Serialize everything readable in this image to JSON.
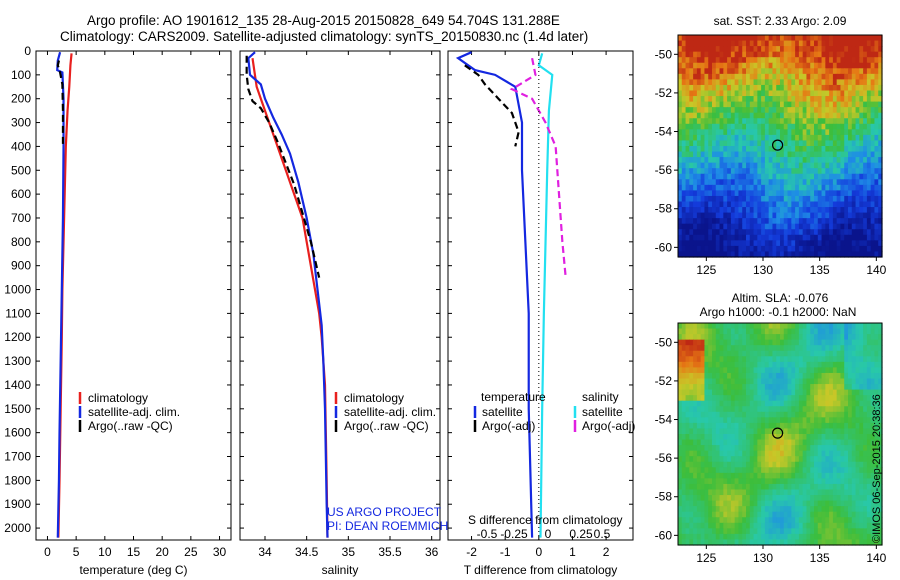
{
  "header": {
    "line1": "Argo profile: AO 1901612_135 28-Aug-2015 20150828_649 54.704S 131.288E",
    "line2": "Climatology: CARS2009. Satellite-adjusted climatology: synTS_20150830.nc (1.4d later)"
  },
  "colors": {
    "climatology": "#e8201e",
    "satellite": "#1428e0",
    "argo": "#000000",
    "sat_salinity": "#22e0f0",
    "argo_salinity": "#e020e0"
  },
  "chart_data": [
    {
      "type": "line",
      "panel": "temperature",
      "xlabel": "temperature (deg C)",
      "ylabel": "",
      "xlim": [
        -2,
        32
      ],
      "ylim": [
        2050,
        0
      ],
      "x_ticks": [
        "0",
        "5",
        "10",
        "15",
        "20",
        "25",
        "30"
      ],
      "y_ticks": [
        "0",
        "100",
        "200",
        "300",
        "400",
        "500",
        "600",
        "700",
        "800",
        "900",
        "1000",
        "1100",
        "1200",
        "1300",
        "1400",
        "1500",
        "1600",
        "1700",
        "1800",
        "1900",
        "2000"
      ],
      "legend": [
        "climatology",
        "satellite-adj. clim.",
        "Argo(..raw -QC)"
      ],
      "series": [
        {
          "name": "climatology",
          "style": "solid",
          "points": [
            [
              4.2,
              10
            ],
            [
              4.0,
              60
            ],
            [
              3.8,
              150
            ],
            [
              3.5,
              250
            ],
            [
              3.2,
              400
            ],
            [
              3.0,
              600
            ],
            [
              2.8,
              800
            ],
            [
              2.6,
              1000
            ],
            [
              2.5,
              1200
            ],
            [
              2.3,
              1500
            ],
            [
              2.1,
              1800
            ],
            [
              1.9,
              2040
            ]
          ]
        },
        {
          "name": "satellite-adj. clim.",
          "style": "solid",
          "points": [
            [
              2.2,
              5
            ],
            [
              1.8,
              40
            ],
            [
              1.7,
              80
            ],
            [
              2.6,
              90
            ],
            [
              2.8,
              200
            ],
            [
              2.8,
              400
            ],
            [
              2.7,
              700
            ],
            [
              2.5,
              1000
            ],
            [
              2.3,
              1300
            ],
            [
              2.1,
              1600
            ],
            [
              2.0,
              1800
            ],
            [
              1.8,
              2040
            ]
          ]
        },
        {
          "name": "Argo(..raw -QC)",
          "style": "dashed",
          "points": [
            [
              2.0,
              40
            ],
            [
              1.8,
              60
            ],
            [
              2.2,
              90
            ],
            [
              2.6,
              140
            ],
            [
              2.7,
              250
            ],
            [
              2.7,
              400
            ]
          ]
        }
      ]
    },
    {
      "type": "line",
      "panel": "salinity",
      "xlabel": "salinity",
      "xlim": [
        33.7,
        36.1
      ],
      "ylim": [
        2050,
        0
      ],
      "x_ticks": [
        "34",
        "34.5",
        "35",
        "35.5",
        "36"
      ],
      "legend": [
        "climatology",
        "satellite-adj. clim.",
        "Argo(..raw -QC)"
      ],
      "series": [
        {
          "name": "climatology",
          "style": "solid",
          "points": [
            [
              33.85,
              30
            ],
            [
              33.9,
              150
            ],
            [
              33.95,
              200
            ],
            [
              34.05,
              300
            ],
            [
              34.15,
              400
            ],
            [
              34.25,
              500
            ],
            [
              34.35,
              600
            ],
            [
              34.45,
              700
            ],
            [
              34.5,
              800
            ],
            [
              34.55,
              900
            ],
            [
              34.6,
              1000
            ],
            [
              34.65,
              1100
            ],
            [
              34.68,
              1200
            ],
            [
              34.7,
              1300
            ],
            [
              34.72,
              1400
            ],
            [
              34.73,
              1600
            ],
            [
              34.74,
              1800
            ],
            [
              34.75,
              2040
            ]
          ]
        },
        {
          "name": "satellite-adj. clim.",
          "style": "solid",
          "points": [
            [
              33.88,
              5
            ],
            [
              33.8,
              30
            ],
            [
              33.82,
              100
            ],
            [
              33.95,
              140
            ],
            [
              34.0,
              200
            ],
            [
              34.1,
              280
            ],
            [
              34.2,
              350
            ],
            [
              34.3,
              430
            ],
            [
              34.4,
              550
            ],
            [
              34.5,
              700
            ],
            [
              34.58,
              850
            ],
            [
              34.63,
              1000
            ],
            [
              34.68,
              1150
            ],
            [
              34.7,
              1300
            ],
            [
              34.72,
              1500
            ],
            [
              34.73,
              1700
            ],
            [
              34.74,
              1900
            ],
            [
              34.75,
              2040
            ]
          ]
        },
        {
          "name": "Argo(..raw -QC)",
          "style": "dashed",
          "points": [
            [
              33.78,
              20
            ],
            [
              33.78,
              100
            ],
            [
              33.8,
              160
            ],
            [
              33.85,
              210
            ],
            [
              33.95,
              240
            ],
            [
              34.05,
              300
            ],
            [
              34.15,
              380
            ],
            [
              34.25,
              470
            ],
            [
              34.35,
              560
            ],
            [
              34.45,
              680
            ],
            [
              34.55,
              800
            ],
            [
              34.65,
              950
            ]
          ]
        }
      ],
      "annotation": [
        "US ARGO PROJECT",
        "PI: DEAN ROEMMICH"
      ]
    },
    {
      "type": "line",
      "panel": "difference",
      "xlabel": "T difference from climatology",
      "xlabel2": "S difference from climatology",
      "xlim": [
        -2.7,
        2.8
      ],
      "ylim": [
        2050,
        0
      ],
      "x_ticks": [
        "-2",
        "-1",
        "0",
        "1",
        "2"
      ],
      "x_ticks2": [
        "-0.5",
        "-0.25",
        "0",
        "0.25",
        "0.5"
      ],
      "legend_left_title": "temperature",
      "legend_right_title": "salinity",
      "legend": [
        "satellite",
        "Argo(-adj)",
        "satellite",
        "Argo(-adj)"
      ],
      "series": [
        {
          "name": "satellite",
          "group": "temperature",
          "style": "solid",
          "color": "satellite",
          "points": [
            [
              -2.0,
              5
            ],
            [
              -2.4,
              30
            ],
            [
              -2.1,
              60
            ],
            [
              -1.9,
              80
            ],
            [
              -1.3,
              100
            ],
            [
              -0.7,
              150
            ],
            [
              -0.5,
              300
            ],
            [
              -0.5,
              500
            ],
            [
              -0.4,
              800
            ],
            [
              -0.3,
              1100
            ],
            [
              -0.3,
              1500
            ],
            [
              -0.2,
              2040
            ]
          ]
        },
        {
          "name": "Argo(-adj)",
          "group": "temperature",
          "style": "dashed",
          "color": "argo",
          "points": [
            [
              -2.2,
              60
            ],
            [
              -1.8,
              100
            ],
            [
              -1.6,
              140
            ],
            [
              -1.2,
              200
            ],
            [
              -0.8,
              260
            ],
            [
              -0.6,
              340
            ],
            [
              -0.7,
              400
            ]
          ]
        },
        {
          "name": "satellite",
          "group": "salinity",
          "style": "solid",
          "color": "sat_salinity",
          "points": [
            [
              0.1,
              10
            ],
            [
              0.0,
              60
            ],
            [
              0.4,
              100
            ],
            [
              0.3,
              250
            ],
            [
              0.25,
              500
            ],
            [
              0.2,
              800
            ],
            [
              0.15,
              1100
            ],
            [
              0.1,
              1500
            ],
            [
              0.05,
              2040
            ]
          ]
        },
        {
          "name": "Argo(-adj)",
          "group": "salinity",
          "style": "dashed",
          "color": "argo_salinity",
          "points": [
            [
              -0.2,
              30
            ],
            [
              -0.1,
              100
            ],
            [
              -0.8,
              160
            ],
            [
              -0.2,
              200
            ],
            [
              0.2,
              300
            ],
            [
              0.5,
              400
            ],
            [
              0.6,
              600
            ],
            [
              0.7,
              800
            ],
            [
              0.8,
              950
            ]
          ]
        }
      ]
    },
    {
      "type": "heatmap",
      "panel": "sat-sst-map",
      "title": "sat. SST: 2.33  Argo: 2.09",
      "x_ticks": [
        "125",
        "130",
        "135",
        "140"
      ],
      "y_ticks": [
        "-50",
        "-52",
        "-54",
        "-56",
        "-58",
        "-60"
      ],
      "xlim": [
        122.5,
        140.5
      ],
      "ylim": [
        -60.5,
        -49
      ],
      "marker": {
        "lon": 131.288,
        "lat": -54.704
      }
    },
    {
      "type": "heatmap",
      "panel": "sla-map",
      "title": "Altim. SLA: -0.076",
      "subtitle": "Argo h1000: -0.1 h2000: NaN",
      "x_ticks": [
        "125",
        "130",
        "135",
        "140"
      ],
      "y_ticks": [
        "-50",
        "-52",
        "-54",
        "-56",
        "-58",
        "-60"
      ],
      "xlim": [
        122.5,
        140.5
      ],
      "ylim": [
        -60.5,
        -49
      ],
      "marker": {
        "lon": 131.288,
        "lat": -54.704
      }
    }
  ],
  "footer_stamp": "©IMOS 06-Sep-2015 20:38:36"
}
